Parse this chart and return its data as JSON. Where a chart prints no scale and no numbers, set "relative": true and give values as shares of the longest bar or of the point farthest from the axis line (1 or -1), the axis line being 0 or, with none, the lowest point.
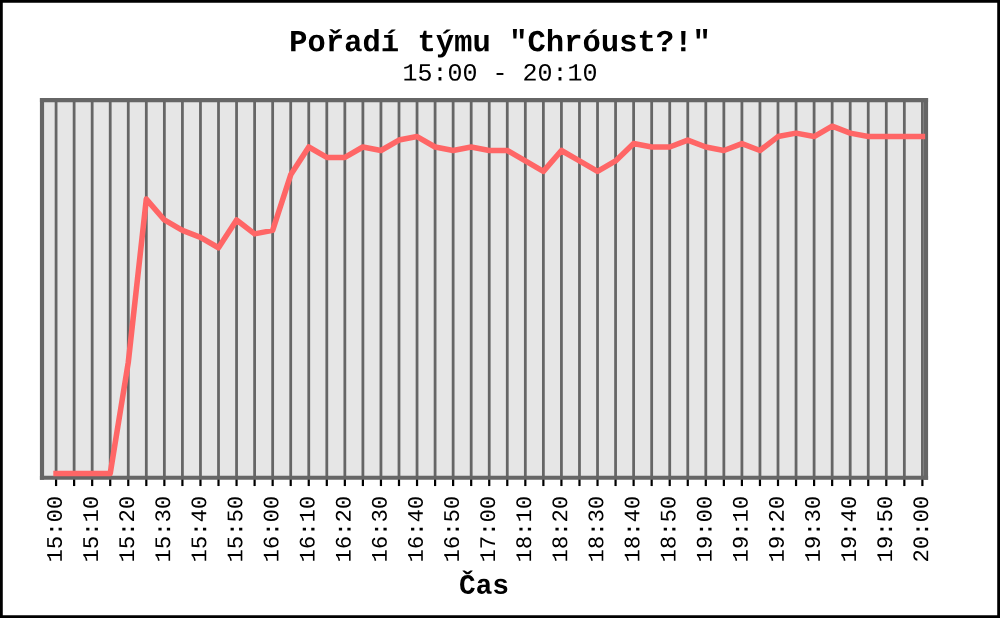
{
  "chart_data": {
    "type": "line",
    "title": "Pořadí týmu \"Chróust?!\"",
    "subtitle": "15:00 - 20:10",
    "xlabel": "Čas",
    "relative": true,
    "grid": "x",
    "marker": "none",
    "line_style": "solid",
    "tick_labels": "x",
    "categories": [
      "15:00",
      null,
      "15:10",
      null,
      "15:20",
      null,
      "15:30",
      null,
      "15:40",
      null,
      "15:50",
      null,
      "16:00",
      null,
      "16:10",
      null,
      "16:20",
      null,
      "16:30",
      null,
      "16:40",
      null,
      "16:50",
      null,
      "17:00",
      null,
      "18:10",
      null,
      "18:20",
      null,
      "18:30",
      null,
      "18:40",
      null,
      "18:50",
      null,
      "19:00",
      null,
      "19:10",
      null,
      "19:20",
      null,
      "19:30",
      null,
      "19:40",
      null,
      "19:50",
      null,
      "20:00"
    ],
    "series": [
      {
        "color": "#ff6666",
        "values": [
          0,
          0,
          0,
          0,
          0.32,
          0.79,
          0.73,
          0.7,
          0.68,
          0.65,
          0.73,
          0.69,
          0.7,
          0.86,
          0.94,
          0.91,
          0.91,
          0.94,
          0.93,
          0.96,
          0.97,
          0.94,
          0.93,
          0.94,
          0.93,
          0.93,
          0.9,
          0.87,
          0.93,
          0.9,
          0.87,
          0.9,
          0.95,
          0.94,
          0.94,
          0.96,
          0.94,
          0.93,
          0.95,
          0.93,
          0.97,
          0.98,
          0.97,
          1,
          0.98,
          0.97,
          0.97,
          0.97,
          0.97
        ]
      }
    ]
  }
}
